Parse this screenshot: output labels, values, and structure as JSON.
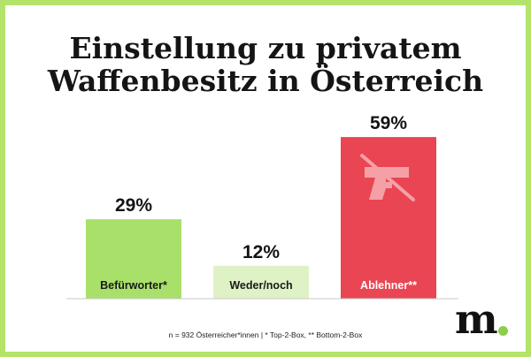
{
  "title_lines": [
    "Einstellung zu privatem",
    "Waffenbesitz in Österreich"
  ],
  "footnote": "n = 932 Österreicher*innen | * Top-2-Box, ** Bottom-2-Box",
  "logo": "m",
  "colors": {
    "border": "#b3e36b",
    "bar_befuerworter": "#a9e06a",
    "bar_weder": "#dff2c6",
    "bar_ablehner": "#e94553",
    "icon_on_red": "#f5a0a7",
    "logo_dot": "#8ccd4a"
  },
  "chart_data": {
    "type": "bar",
    "title": "Einstellung zu privatem Waffenbesitz in Österreich",
    "categories": [
      "Befürworter*",
      "Weder/noch",
      "Ablehner**"
    ],
    "values": [
      29,
      12,
      59
    ],
    "value_labels": [
      "29%",
      "12%",
      "59%"
    ],
    "unit": "%",
    "ylim": [
      0,
      60
    ],
    "grid": false,
    "legend": "none",
    "bar_colors": [
      "#a9e06a",
      "#dff2c6",
      "#e94553"
    ],
    "label_colors": [
      "#1a1a1a",
      "#1a1a1a",
      "#ffffff"
    ],
    "icon": "crossed-out-gun-icon"
  }
}
